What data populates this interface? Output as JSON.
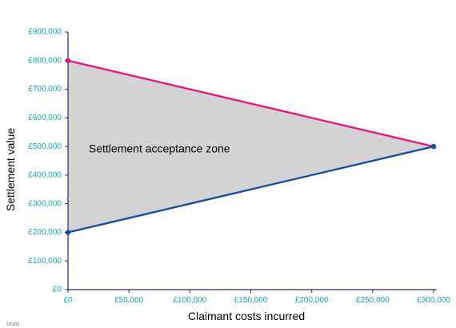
{
  "figure_id": "18162",
  "chart_data": {
    "type": "area",
    "title": "",
    "xlabel": "Claimant costs incurred",
    "ylabel": "Settlement value",
    "xlim": [
      0,
      300000
    ],
    "ylim": [
      0,
      900000
    ],
    "x_ticks": [
      0,
      50000,
      100000,
      150000,
      200000,
      250000,
      300000
    ],
    "x_tick_labels": [
      "£0",
      "£50,000",
      "£100,000",
      "£150,000",
      "£200,000",
      "£250,000",
      "£300,000"
    ],
    "y_ticks": [
      0,
      100000,
      200000,
      300000,
      400000,
      500000,
      600000,
      700000,
      800000,
      900000
    ],
    "y_tick_labels": [
      "£0",
      "£100,000",
      "£200,000",
      "£300,000",
      "£400,000",
      "£500,000",
      "£600,000",
      "£700,000",
      "£800,000",
      "£900,000"
    ],
    "grid": false,
    "series": [
      {
        "color": "#e6197e",
        "x": [
          0,
          300000
        ],
        "y": [
          800000,
          500000
        ]
      },
      {
        "color": "#1a4f99",
        "x": [
          0,
          300000
        ],
        "y": [
          200000,
          500000
        ]
      }
    ],
    "zone": {
      "label": "Settlement acceptance zone",
      "fill": "#d3d3d5",
      "polygon_x": [
        0,
        300000,
        0
      ],
      "polygon_y": [
        800000,
        500000,
        200000
      ],
      "label_anchor": {
        "x": 75000,
        "y": 490000
      }
    },
    "axis_color": "#1f2a6b",
    "tick_label_color": "#17a2a8"
  }
}
